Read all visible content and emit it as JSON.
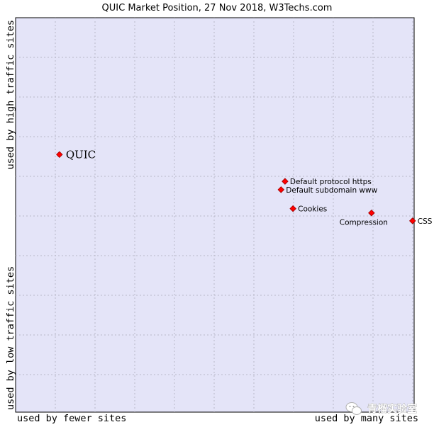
{
  "chart_data": {
    "type": "scatter",
    "title": "QUIC Market Position, 27 Nov 2018, W3Techs.com",
    "xlabel_left": "used by fewer sites",
    "xlabel_right": "used by many sites",
    "ylabel_top": "used by high traffic sites",
    "ylabel_bottom": "used by low traffic sites",
    "grid": true,
    "colors": {
      "plot_background": "#e4e4f8",
      "grid": "#b8b8c8",
      "point": "#ff0000",
      "point_edge": "#990000"
    },
    "points": [
      {
        "label": "QUIC",
        "x": 0.11,
        "y": 0.653,
        "highlight": true
      },
      {
        "label": "Default protocol https",
        "x": 0.676,
        "y": 0.585,
        "highlight": false
      },
      {
        "label": "Default subdomain www",
        "x": 0.666,
        "y": 0.564,
        "highlight": false
      },
      {
        "label": "Cookies",
        "x": 0.696,
        "y": 0.516,
        "highlight": false
      },
      {
        "label": "Compression",
        "x": 0.893,
        "y": 0.505,
        "highlight": false
      },
      {
        "label": "CSS",
        "x": 0.996,
        "y": 0.485,
        "highlight": false
      }
    ]
  },
  "watermark": {
    "text": "青榴实验室",
    "icon": "wechat-icon"
  }
}
